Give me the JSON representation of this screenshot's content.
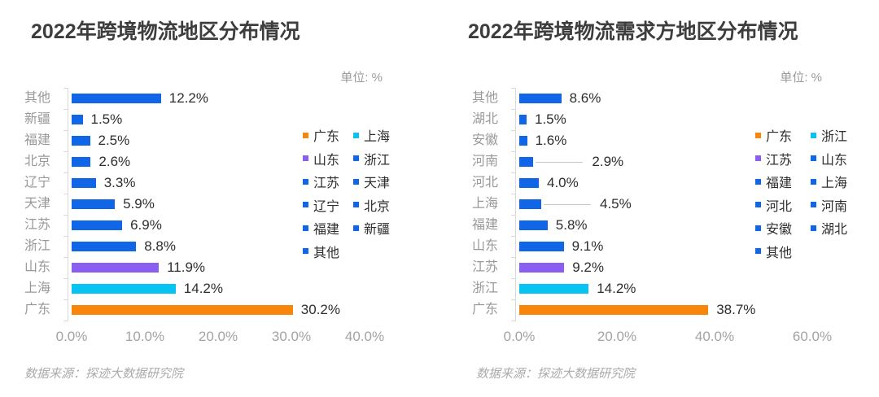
{
  "palette": {
    "blue": "#1166E8",
    "purple": "#8A5FF0",
    "cyan": "#06C3F2",
    "orange": "#F8860B",
    "axis_gray": "#D9D9D9",
    "category_gray": "#999999",
    "tick_gray": "#A3A3A3",
    "text_dark": "#2E2E2E",
    "title_dark": "#3D3D3D",
    "source_gray": "#ABABAB"
  },
  "chart_data": [
    {
      "type": "bar",
      "orientation": "horizontal",
      "title": "2022年跨境物流地区分布情况",
      "unit_label": "单位: %",
      "source": "数据来源：探迹大数据研究院",
      "categories": [
        "其他",
        "新疆",
        "福建",
        "北京",
        "辽宁",
        "天津",
        "江苏",
        "浙江",
        "山东",
        "上海",
        "广东"
      ],
      "values": [
        12.2,
        1.5,
        2.5,
        2.6,
        3.3,
        5.9,
        6.9,
        8.8,
        11.9,
        14.2,
        30.2
      ],
      "value_labels": [
        "12.2%",
        "1.5%",
        "2.5%",
        "2.6%",
        "3.3%",
        "5.9%",
        "6.9%",
        "8.8%",
        "11.9%",
        "14.2%",
        "30.2%"
      ],
      "bar_colors": [
        "#1166E8",
        "#1166E8",
        "#1166E8",
        "#1166E8",
        "#1166E8",
        "#1166E8",
        "#1166E8",
        "#1166E8",
        "#8A5FF0",
        "#06C3F2",
        "#F8860B"
      ],
      "callout_offsets": [
        0,
        0,
        0,
        0,
        0,
        0,
        0,
        0,
        0,
        0,
        0
      ],
      "xlim": [
        0,
        40
      ],
      "x_ticks": [
        "0.0%",
        "10.0%",
        "20.0%",
        "30.0%",
        "40.0%"
      ],
      "grid": false,
      "legend_position": "right",
      "legend": [
        {
          "label": "广东",
          "color": "#F8860B"
        },
        {
          "label": "上海",
          "color": "#06C3F2"
        },
        {
          "label": "山东",
          "color": "#8A5FF0"
        },
        {
          "label": "浙江",
          "color": "#1166E8"
        },
        {
          "label": "江苏",
          "color": "#1166E8"
        },
        {
          "label": "天津",
          "color": "#1166E8"
        },
        {
          "label": "辽宁",
          "color": "#1166E8"
        },
        {
          "label": "北京",
          "color": "#1166E8"
        },
        {
          "label": "福建",
          "color": "#1166E8"
        },
        {
          "label": "新疆",
          "color": "#1166E8"
        },
        {
          "label": "其他",
          "color": "#1166E8"
        }
      ]
    },
    {
      "type": "bar",
      "orientation": "horizontal",
      "title": "2022年跨境物流需求方地区分布情况",
      "unit_label": "单位: %",
      "source": "数据来源：探迹大数据研究院",
      "categories": [
        "其他",
        "湖北",
        "安徽",
        "河南",
        "河北",
        "上海",
        "福建",
        "山东",
        "江苏",
        "浙江",
        "广东"
      ],
      "values": [
        8.6,
        1.5,
        1.6,
        2.9,
        4.0,
        4.5,
        5.8,
        9.1,
        9.2,
        14.2,
        38.7
      ],
      "value_labels": [
        "8.6%",
        "1.5%",
        "1.6%",
        "2.9%",
        "4.0%",
        "4.5%",
        "5.8%",
        "9.1%",
        "9.2%",
        "14.2%",
        "38.7%"
      ],
      "bar_colors": [
        "#1166E8",
        "#1166E8",
        "#1166E8",
        "#1166E8",
        "#1166E8",
        "#1166E8",
        "#1166E8",
        "#1166E8",
        "#8A5FF0",
        "#06C3F2",
        "#F8860B"
      ],
      "callout_offsets": [
        0,
        0,
        0,
        72,
        0,
        72,
        0,
        0,
        0,
        0,
        0
      ],
      "xlim": [
        0,
        60
      ],
      "x_ticks": [
        "0.0%",
        "20.0%",
        "40.0%",
        "60.0%"
      ],
      "grid": false,
      "legend_position": "right",
      "legend": [
        {
          "label": "广东",
          "color": "#F8860B"
        },
        {
          "label": "浙江",
          "color": "#06C3F2"
        },
        {
          "label": "江苏",
          "color": "#8A5FF0"
        },
        {
          "label": "山东",
          "color": "#1166E8"
        },
        {
          "label": "福建",
          "color": "#1166E8"
        },
        {
          "label": "上海",
          "color": "#1166E8"
        },
        {
          "label": "河北",
          "color": "#1166E8"
        },
        {
          "label": "河南",
          "color": "#1166E8"
        },
        {
          "label": "安徽",
          "color": "#1166E8"
        },
        {
          "label": "湖北",
          "color": "#1166E8"
        },
        {
          "label": "其他",
          "color": "#1166E8"
        }
      ]
    }
  ]
}
